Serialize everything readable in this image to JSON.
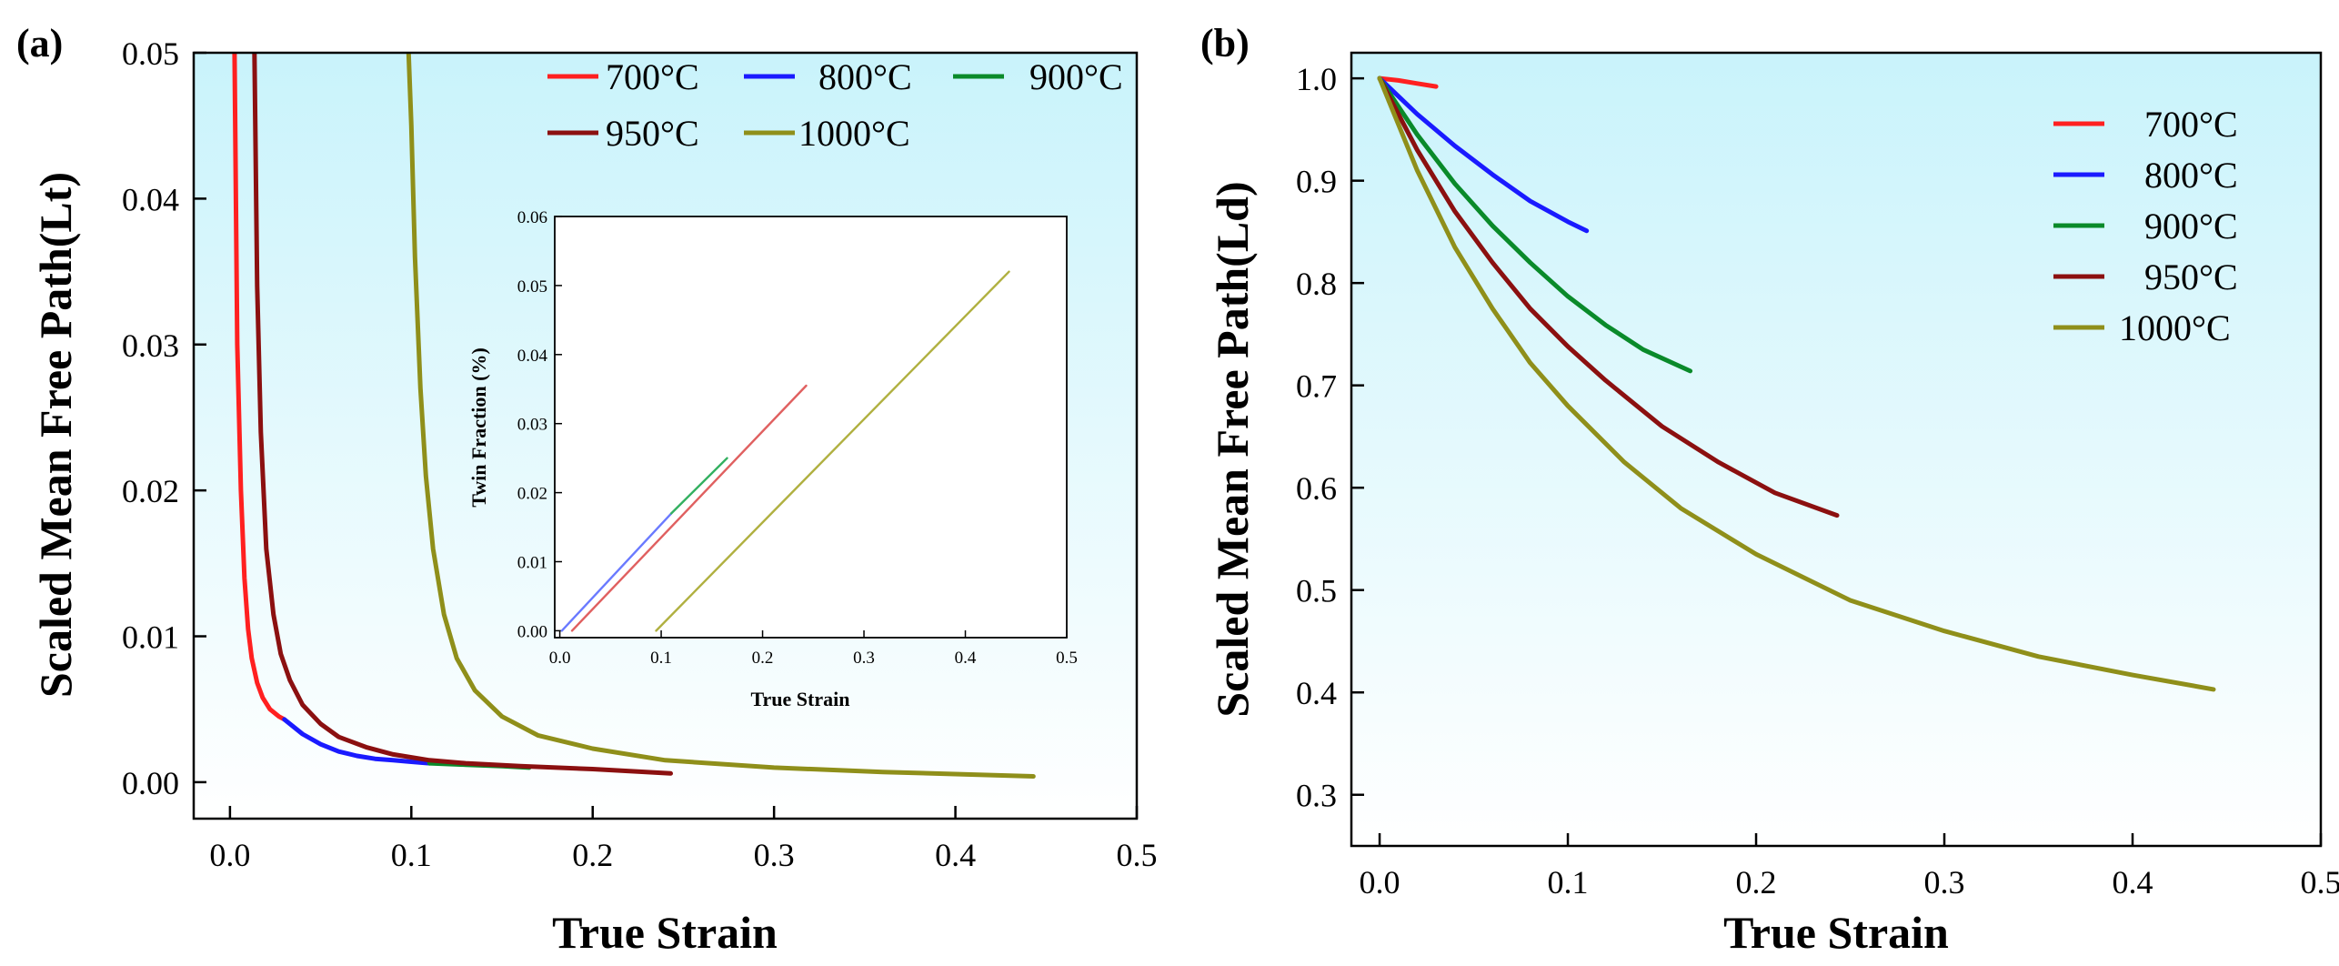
{
  "chart_data": [
    {
      "id": "a",
      "type": "line",
      "panel_label": "(a)",
      "xlabel": "True  Strain",
      "ylabel": "Scaled Mean Free Path(Lt)",
      "xlim": [
        -0.02,
        0.5
      ],
      "ylim": [
        -0.0025,
        0.05
      ],
      "xticks": [
        "0.0",
        "0.1",
        "0.2",
        "0.3",
        "0.4",
        "0.5"
      ],
      "xtick_values": [
        0.0,
        0.1,
        0.2,
        0.3,
        0.4,
        0.5
      ],
      "yticks": [
        "0.00",
        "0.01",
        "0.02",
        "0.03",
        "0.04",
        "0.05"
      ],
      "ytick_values": [
        0.0,
        0.01,
        0.02,
        0.03,
        0.04,
        0.05
      ],
      "legend": "top-right",
      "series": [
        {
          "name": "700°C",
          "color": "#ff2020",
          "x": [
            0.0025,
            0.004,
            0.006,
            0.008,
            0.01,
            0.012,
            0.015,
            0.018,
            0.022,
            0.027,
            0.03
          ],
          "y": [
            0.05,
            0.03,
            0.02,
            0.014,
            0.0105,
            0.0085,
            0.0068,
            0.0058,
            0.005,
            0.0045,
            0.0043
          ]
        },
        {
          "name": "800°C",
          "color": "#1a1aff",
          "x": [
            0.03,
            0.04,
            0.05,
            0.06,
            0.07,
            0.08,
            0.09,
            0.1,
            0.11
          ],
          "y": [
            0.0043,
            0.0033,
            0.0026,
            0.0021,
            0.0018,
            0.0016,
            0.0015,
            0.0014,
            0.0013
          ]
        },
        {
          "name": "900°C",
          "color": "#0a8a2a",
          "x": [
            0.11,
            0.13,
            0.15,
            0.165
          ],
          "y": [
            0.0013,
            0.0012,
            0.0011,
            0.001
          ]
        },
        {
          "name": "950°C",
          "color": "#8b1010",
          "x": [
            0.0135,
            0.015,
            0.017,
            0.02,
            0.024,
            0.028,
            0.033,
            0.04,
            0.05,
            0.06,
            0.075,
            0.09,
            0.11,
            0.13,
            0.16,
            0.2,
            0.243
          ],
          "y": [
            0.05,
            0.034,
            0.024,
            0.016,
            0.0115,
            0.0088,
            0.007,
            0.0053,
            0.004,
            0.0031,
            0.0024,
            0.0019,
            0.0015,
            0.0013,
            0.0011,
            0.0009,
            0.0006
          ]
        },
        {
          "name": "1000°C",
          "color": "#8f8f1a",
          "x": [
            0.0985,
            0.1,
            0.102,
            0.105,
            0.108,
            0.112,
            0.118,
            0.125,
            0.135,
            0.15,
            0.17,
            0.2,
            0.24,
            0.3,
            0.36,
            0.443
          ],
          "y": [
            0.05,
            0.045,
            0.036,
            0.027,
            0.021,
            0.016,
            0.0115,
            0.0085,
            0.0063,
            0.0045,
            0.0032,
            0.0023,
            0.0015,
            0.001,
            0.0007,
            0.0004
          ]
        }
      ],
      "inset": {
        "type": "line",
        "xlabel": "True  Strain",
        "ylabel": "Twin Fraction (%)",
        "xlim": [
          -0.005,
          0.5
        ],
        "ylim": [
          -0.001,
          0.06
        ],
        "xticks": [
          "0.0",
          "0.1",
          "0.2",
          "0.3",
          "0.4",
          "0.5"
        ],
        "xtick_values": [
          0.0,
          0.1,
          0.2,
          0.3,
          0.4,
          0.5
        ],
        "yticks": [
          "0.00",
          "0.01",
          "0.02",
          "0.03",
          "0.04",
          "0.05",
          "0.06"
        ],
        "ytick_values": [
          0.0,
          0.01,
          0.02,
          0.03,
          0.04,
          0.05,
          0.06
        ],
        "series": [
          {
            "name": "800°C",
            "color": "#6a7aff",
            "x": [
              0.002,
              0.11
            ],
            "y": [
              0.0,
              0.017
            ]
          },
          {
            "name": "900°C",
            "color": "#33b060",
            "x": [
              0.11,
              0.165
            ],
            "y": [
              0.017,
              0.025
            ]
          },
          {
            "name": "950°C",
            "color": "#e06060",
            "x": [
              0.012,
              0.243
            ],
            "y": [
              0.0,
              0.0355
            ]
          },
          {
            "name": "1000°C",
            "color": "#b0b040",
            "x": [
              0.095,
              0.443
            ],
            "y": [
              0.0,
              0.052
            ]
          }
        ]
      }
    },
    {
      "id": "b",
      "type": "line",
      "panel_label": "(b)",
      "xlabel": "True  Strain",
      "ylabel": "Scaled Mean Free Path(Ld)",
      "xlim": [
        -0.015,
        0.5
      ],
      "ylim": [
        0.25,
        1.025
      ],
      "xticks": [
        "0.0",
        "0.1",
        "0.2",
        "0.3",
        "0.4",
        "0.5"
      ],
      "xtick_values": [
        0.0,
        0.1,
        0.2,
        0.3,
        0.4,
        0.5
      ],
      "yticks": [
        "0.3",
        "0.4",
        "0.5",
        "0.6",
        "0.7",
        "0.8",
        "0.9",
        "1.0"
      ],
      "ytick_values": [
        0.3,
        0.4,
        0.5,
        0.6,
        0.7,
        0.8,
        0.9,
        1.0
      ],
      "legend": "top-right",
      "series": [
        {
          "name": "700°C",
          "color": "#ff2020",
          "x": [
            0.0,
            0.01,
            0.02,
            0.03
          ],
          "y": [
            1.0,
            0.998,
            0.995,
            0.992
          ]
        },
        {
          "name": "800°C",
          "color": "#1a1aff",
          "x": [
            0.0,
            0.02,
            0.04,
            0.06,
            0.08,
            0.1,
            0.11
          ],
          "y": [
            1.0,
            0.965,
            0.934,
            0.906,
            0.88,
            0.86,
            0.851
          ]
        },
        {
          "name": "900°C",
          "color": "#0a8a2a",
          "x": [
            0.0,
            0.02,
            0.04,
            0.06,
            0.08,
            0.1,
            0.12,
            0.14,
            0.165
          ],
          "y": [
            1.0,
            0.945,
            0.897,
            0.856,
            0.82,
            0.787,
            0.759,
            0.735,
            0.714
          ]
        },
        {
          "name": "950°C",
          "color": "#8b1010",
          "x": [
            0.0,
            0.02,
            0.04,
            0.06,
            0.08,
            0.1,
            0.12,
            0.15,
            0.18,
            0.21,
            0.243
          ],
          "y": [
            1.0,
            0.93,
            0.87,
            0.82,
            0.775,
            0.738,
            0.705,
            0.66,
            0.625,
            0.595,
            0.573
          ]
        },
        {
          "name": "1000°C",
          "color": "#8f8f1a",
          "x": [
            0.0,
            0.02,
            0.04,
            0.06,
            0.08,
            0.1,
            0.13,
            0.16,
            0.2,
            0.25,
            0.3,
            0.35,
            0.4,
            0.443
          ],
          "y": [
            1.0,
            0.91,
            0.835,
            0.775,
            0.722,
            0.68,
            0.625,
            0.58,
            0.535,
            0.49,
            0.46,
            0.435,
            0.417,
            0.403
          ]
        }
      ]
    }
  ]
}
